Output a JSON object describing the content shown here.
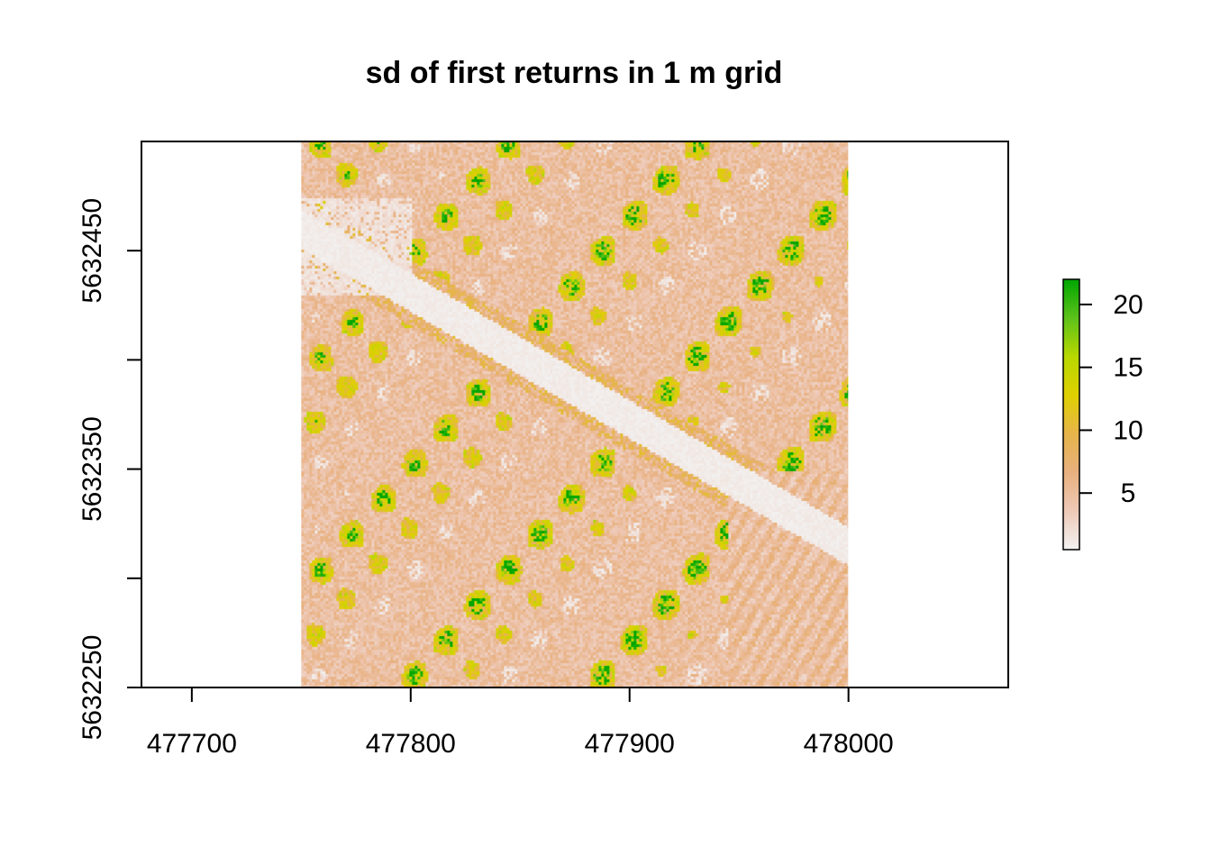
{
  "chart_data": {
    "type": "heatmap",
    "title": "sd of first returns in 1 m grid",
    "xlabel": "",
    "ylabel": "",
    "xlim": [
      477677,
      478073
    ],
    "ylim": [
      5632250,
      5632500
    ],
    "raster_extent": {
      "x": [
        477750,
        478000
      ],
      "y": [
        5632250,
        5632500
      ]
    },
    "x_ticks": [
      477700,
      477800,
      477900,
      478000
    ],
    "x_tick_labels": [
      "477700",
      "477800",
      "477900",
      "478000"
    ],
    "y_ticks": [
      5632250,
      5632300,
      5632350,
      5632400,
      5632450
    ],
    "y_tick_labels": [
      "5632250",
      "",
      "5632350",
      "",
      "5632450"
    ],
    "legend": {
      "range": [
        0.5,
        22
      ],
      "ticks": [
        5,
        10,
        15,
        20
      ],
      "tick_labels": [
        "5",
        "10",
        "15",
        "20"
      ],
      "colors": [
        "#f2f2f2",
        "#eec9b7",
        "#e8b07e",
        "#e6b44a",
        "#dfd000",
        "#b8d800",
        "#5cc21a",
        "#00a600"
      ]
    },
    "grid": false
  }
}
